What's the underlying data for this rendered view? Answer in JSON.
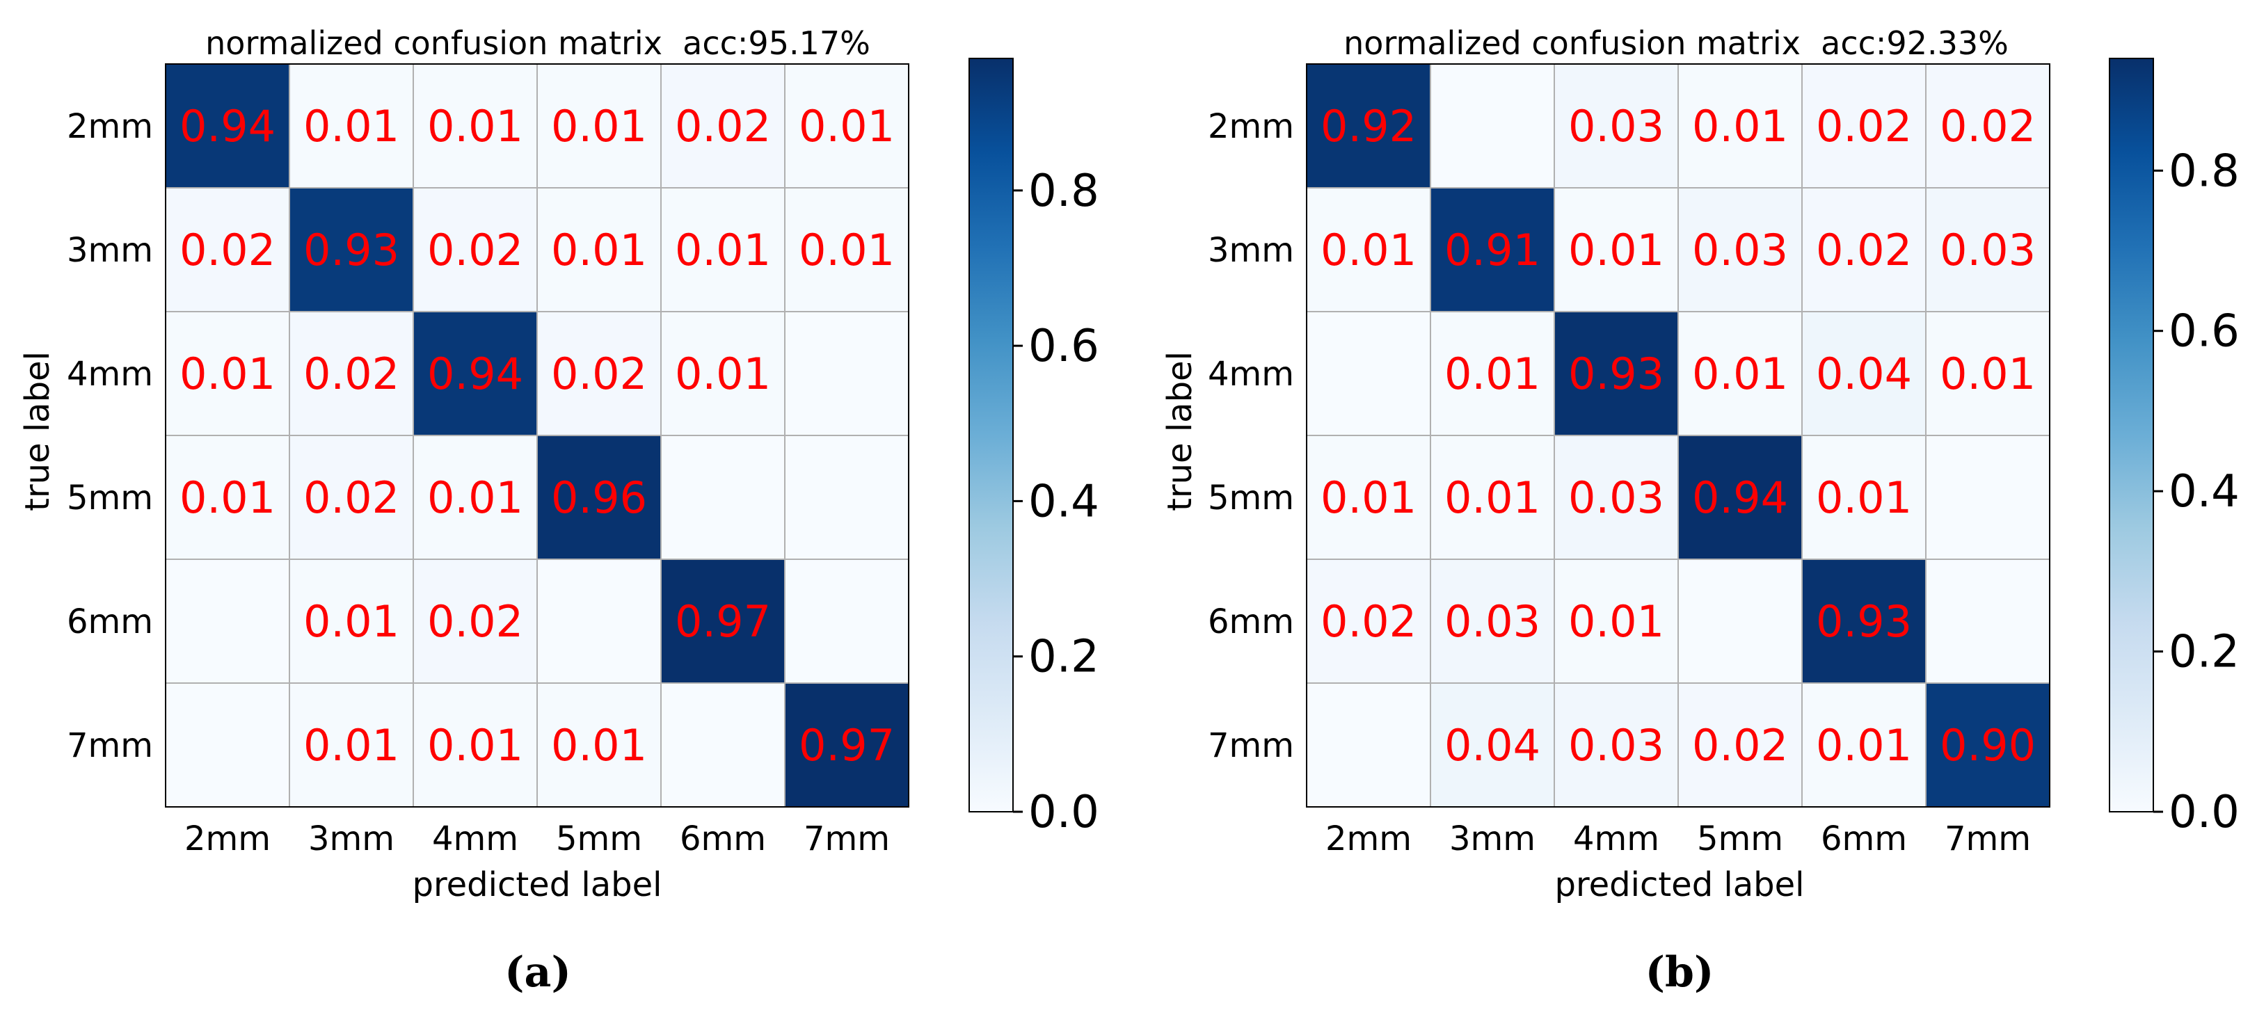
{
  "chart_data": [
    {
      "type": "heatmap",
      "title": "normalized confusion matrix  acc:95.17%",
      "xlabel": "predicted label",
      "ylabel": "true label",
      "caption": "(a)",
      "categories_x": [
        "2mm",
        "3mm",
        "4mm",
        "5mm",
        "6mm",
        "7mm"
      ],
      "categories_y": [
        "2mm",
        "3mm",
        "4mm",
        "5mm",
        "6mm",
        "7mm"
      ],
      "values": [
        [
          0.94,
          0.01,
          0.01,
          0.01,
          0.02,
          0.01
        ],
        [
          0.02,
          0.93,
          0.02,
          0.01,
          0.01,
          0.01
        ],
        [
          0.01,
          0.02,
          0.94,
          0.02,
          0.01,
          0.0
        ],
        [
          0.01,
          0.02,
          0.01,
          0.96,
          0.0,
          0.0
        ],
        [
          0.0,
          0.01,
          0.02,
          0.0,
          0.97,
          0.0
        ],
        [
          0.0,
          0.01,
          0.01,
          0.01,
          0.0,
          0.97
        ]
      ],
      "cell_labels": [
        [
          "0.94",
          "0.01",
          "0.01",
          "0.01",
          "0.02",
          "0.01"
        ],
        [
          "0.02",
          "0.93",
          "0.02",
          "0.01",
          "0.01",
          "0.01"
        ],
        [
          "0.01",
          "0.02",
          "0.94",
          "0.02",
          "0.01",
          ""
        ],
        [
          "0.01",
          "0.02",
          "0.01",
          "0.96",
          "",
          ""
        ],
        [
          "",
          "0.01",
          "0.02",
          "",
          "0.97",
          ""
        ],
        [
          "",
          "0.01",
          "0.01",
          "0.01",
          "",
          "0.97"
        ]
      ],
      "colorbar": {
        "range": [
          0,
          0.97
        ],
        "ticks": [
          0.0,
          0.2,
          0.4,
          0.6,
          0.8
        ],
        "tick_labels": [
          "0.0",
          "0.2",
          "0.4",
          "0.6",
          "0.8"
        ],
        "colormap": "Blues"
      },
      "text_color": "#ff0000"
    },
    {
      "type": "heatmap",
      "title": "normalized confusion matrix  acc:92.33%",
      "xlabel": "predicted label",
      "ylabel": "true label",
      "caption": "(b)",
      "categories_x": [
        "2mm",
        "3mm",
        "4mm",
        "5mm",
        "6mm",
        "7mm"
      ],
      "categories_y": [
        "2mm",
        "3mm",
        "4mm",
        "5mm",
        "6mm",
        "7mm"
      ],
      "values": [
        [
          0.92,
          0.0,
          0.03,
          0.01,
          0.02,
          0.02
        ],
        [
          0.01,
          0.91,
          0.01,
          0.03,
          0.02,
          0.03
        ],
        [
          0.0,
          0.01,
          0.93,
          0.01,
          0.04,
          0.01
        ],
        [
          0.01,
          0.01,
          0.03,
          0.94,
          0.01,
          0.0
        ],
        [
          0.02,
          0.03,
          0.01,
          0.0,
          0.93,
          0.0
        ],
        [
          0.0,
          0.04,
          0.03,
          0.02,
          0.01,
          0.9
        ]
      ],
      "cell_labels": [
        [
          "0.92",
          "",
          "0.03",
          "0.01",
          "0.02",
          "0.02"
        ],
        [
          "0.01",
          "0.91",
          "0.01",
          "0.03",
          "0.02",
          "0.03"
        ],
        [
          "",
          "0.01",
          "0.93",
          "0.01",
          "0.04",
          "0.01"
        ],
        [
          "0.01",
          "0.01",
          "0.03",
          "0.94",
          "0.01",
          ""
        ],
        [
          "0.02",
          "0.03",
          "0.01",
          "",
          "0.93",
          ""
        ],
        [
          "",
          "0.04",
          "0.03",
          "0.02",
          "0.01",
          "0.90"
        ]
      ],
      "colorbar": {
        "range": [
          0,
          0.94
        ],
        "ticks": [
          0.0,
          0.2,
          0.4,
          0.6,
          0.8
        ],
        "tick_labels": [
          "0.0",
          "0.2",
          "0.4",
          "0.6",
          "0.8"
        ],
        "colormap": "Blues"
      },
      "text_color": "#ff0000"
    }
  ]
}
